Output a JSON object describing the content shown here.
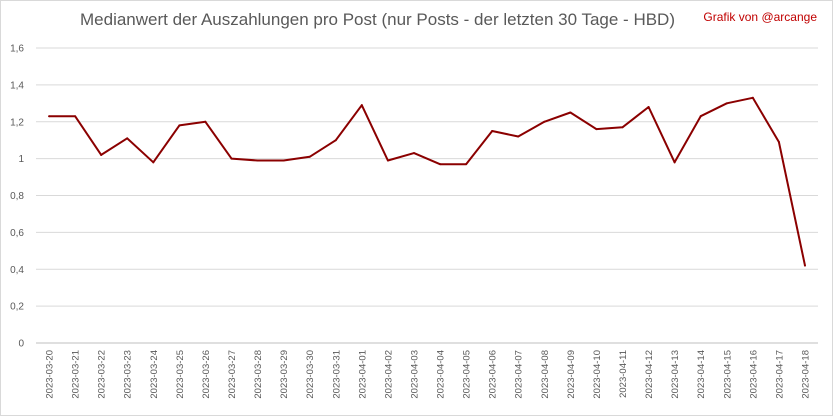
{
  "chart_data": {
    "type": "line",
    "title": "Medianwert der Auszahlungen pro Post (nur Posts - der letzten 30 Tage - HBD)",
    "credit": "Grafik von @arcange",
    "xlabel": "",
    "ylabel": "",
    "ylim": [
      0,
      1.6
    ],
    "y_ticks": [
      "0",
      "0,2",
      "0,4",
      "0,6",
      "0,8",
      "1",
      "1,2",
      "1,4",
      "1,6"
    ],
    "grid": true,
    "legend": "none",
    "line_color": "#8b0000",
    "categories": [
      "2023-03-20",
      "2023-03-21",
      "2023-03-22",
      "2023-03-23",
      "2023-03-24",
      "2023-03-25",
      "2023-03-26",
      "2023-03-27",
      "2023-03-28",
      "2023-03-29",
      "2023-03-30",
      "2023-03-31",
      "2023-04-01",
      "2023-04-02",
      "2023-04-03",
      "2023-04-04",
      "2023-04-05",
      "2023-04-06",
      "2023-04-07",
      "2023-04-08",
      "2023-04-09",
      "2023-04-10",
      "2023-04-11",
      "2023-04-12",
      "2023-04-13",
      "2023-04-14",
      "2023-04-15",
      "2023-04-16",
      "2023-04-17",
      "2023-04-18"
    ],
    "series": [
      {
        "values": [
          1.23,
          1.23,
          1.02,
          1.11,
          0.98,
          1.18,
          1.2,
          1.0,
          0.99,
          0.99,
          1.01,
          1.1,
          1.29,
          0.99,
          1.03,
          0.97,
          0.97,
          1.15,
          1.12,
          1.2,
          1.25,
          1.16,
          1.17,
          1.28,
          0.98,
          1.23,
          1.3,
          1.33,
          1.09,
          0.42
        ]
      }
    ]
  }
}
